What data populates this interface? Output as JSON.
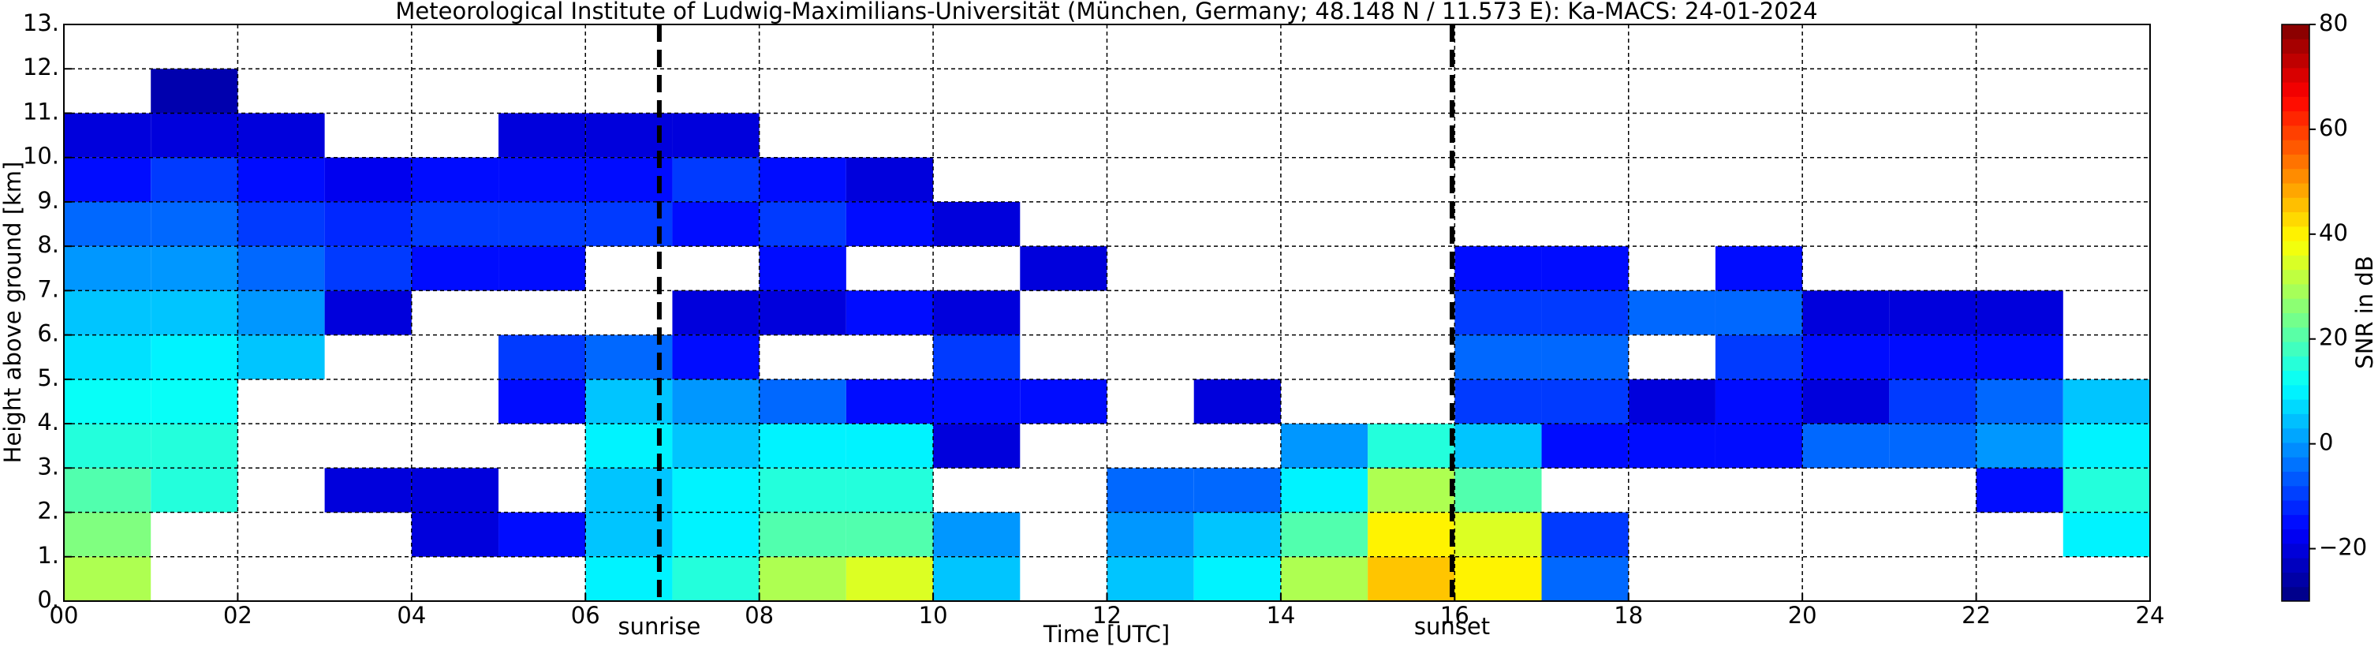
{
  "chart_data": {
    "type": "heatmap",
    "title": "Meteorological Institute of Ludwig-Maximilians-Universität (München, Germany; 48.148 N / 11.573 E):    Ka-MACS: 24-01-2024",
    "xlabel": "Time [UTC]",
    "ylabel": "Height above ground [km]",
    "colorbar_label": "SNR in dB",
    "colormap": "jet",
    "grid": true,
    "xlim": [
      0,
      24
    ],
    "ylim": [
      0,
      13
    ],
    "zlim": [
      -30,
      80
    ],
    "xticks": [
      {
        "value": 0,
        "label": "00"
      },
      {
        "value": 2,
        "label": "02"
      },
      {
        "value": 4,
        "label": "04"
      },
      {
        "value": 6,
        "label": "06"
      },
      {
        "value": 8,
        "label": "08"
      },
      10,
      12,
      14,
      16,
      18,
      20,
      22,
      24
    ],
    "yticks": [
      {
        "value": 0,
        "label": "0."
      },
      {
        "value": 1,
        "label": "1."
      },
      {
        "value": 2,
        "label": "2."
      },
      {
        "value": 3,
        "label": "3."
      },
      {
        "value": 4,
        "label": "4."
      },
      {
        "value": 5,
        "label": "5."
      },
      {
        "value": 6,
        "label": "6."
      },
      {
        "value": 7,
        "label": "7."
      },
      {
        "value": 8,
        "label": "8."
      },
      {
        "value": 9,
        "label": "9."
      },
      {
        "value": 10,
        "label": "10."
      },
      {
        "value": 11,
        "label": "11."
      },
      {
        "value": 12,
        "label": "12."
      },
      {
        "value": 13,
        "label": "13."
      }
    ],
    "zticks": [
      {
        "value": -20,
        "label": "−20"
      },
      0,
      20,
      40,
      60,
      80
    ],
    "annotations": [
      {
        "text": "sunrise",
        "x": 6.85
      },
      {
        "text": "sunset",
        "x": 15.97
      }
    ],
    "x_bins": [
      0,
      1,
      2,
      3,
      4,
      5,
      6,
      7,
      8,
      9,
      10,
      11,
      12,
      13,
      14,
      15,
      16,
      17,
      18,
      19,
      20,
      21,
      22,
      23,
      24
    ],
    "y_bins": [
      0,
      1,
      2,
      3,
      4,
      5,
      6,
      7,
      8,
      9,
      10,
      11,
      12,
      13
    ],
    "z": [
      [
        30,
        25,
        20,
        15,
        12,
        8,
        5,
        0,
        -5,
        -15,
        -20,
        null,
        null
      ],
      [
        null,
        null,
        15,
        15,
        12,
        10,
        5,
        0,
        -5,
        -10,
        -20,
        -25,
        null
      ],
      [
        null,
        null,
        null,
        null,
        null,
        5,
        0,
        -5,
        -10,
        -15,
        -20,
        null,
        null
      ],
      [
        null,
        null,
        -20,
        null,
        null,
        null,
        -20,
        -10,
        -12,
        -18,
        null,
        null,
        null
      ],
      [
        null,
        -20,
        -20,
        null,
        null,
        null,
        null,
        -15,
        -10,
        -15,
        null,
        null,
        null
      ],
      [
        null,
        -15,
        null,
        null,
        -15,
        -10,
        null,
        -15,
        -10,
        -15,
        -20,
        null,
        null
      ],
      [
        10,
        5,
        5,
        10,
        5,
        -5,
        null,
        null,
        -10,
        -15,
        -20,
        null,
        null
      ],
      [
        15,
        10,
        10,
        5,
        0,
        -15,
        -20,
        null,
        -15,
        -10,
        -20,
        null,
        null
      ],
      [
        30,
        20,
        15,
        10,
        -5,
        null,
        -20,
        -15,
        -10,
        -15,
        null,
        null,
        null
      ],
      [
        35,
        20,
        15,
        10,
        -15,
        null,
        -15,
        null,
        -15,
        -20,
        null,
        null,
        null
      ],
      [
        5,
        0,
        null,
        -20,
        -15,
        -10,
        -20,
        null,
        -20,
        null,
        null,
        null,
        null
      ],
      [
        null,
        null,
        null,
        null,
        -15,
        null,
        null,
        -20,
        null,
        null,
        null,
        null,
        null
      ],
      [
        5,
        0,
        -5,
        null,
        null,
        null,
        null,
        null,
        null,
        null,
        null,
        null,
        null
      ],
      [
        10,
        5,
        -5,
        null,
        -20,
        null,
        null,
        null,
        null,
        null,
        null,
        null,
        null
      ],
      [
        30,
        20,
        10,
        0,
        null,
        null,
        null,
        null,
        null,
        null,
        null,
        null,
        null
      ],
      [
        45,
        40,
        30,
        15,
        null,
        null,
        null,
        null,
        null,
        null,
        null,
        null,
        null
      ],
      [
        40,
        35,
        20,
        5,
        -10,
        -5,
        -10,
        -15,
        null,
        null,
        null,
        null,
        null
      ],
      [
        -5,
        -10,
        null,
        -15,
        -10,
        -5,
        -10,
        -15,
        null,
        null,
        null,
        null,
        null
      ],
      [
        null,
        null,
        null,
        -15,
        -20,
        null,
        -5,
        null,
        null,
        null,
        null,
        null,
        null
      ],
      [
        null,
        null,
        null,
        -15,
        -15,
        -10,
        -5,
        -15,
        null,
        null,
        null,
        null,
        null
      ],
      [
        null,
        null,
        null,
        -5,
        -20,
        -15,
        -20,
        null,
        null,
        null,
        null,
        null,
        null
      ],
      [
        null,
        null,
        null,
        -5,
        -10,
        -15,
        -20,
        null,
        null,
        null,
        null,
        null,
        null
      ],
      [
        null,
        null,
        -15,
        0,
        -5,
        -15,
        -20,
        null,
        null,
        null,
        null,
        null,
        null
      ],
      [
        null,
        10,
        15,
        10,
        5,
        null,
        null,
        null,
        null,
        null,
        null,
        null,
        null
      ]
    ]
  }
}
